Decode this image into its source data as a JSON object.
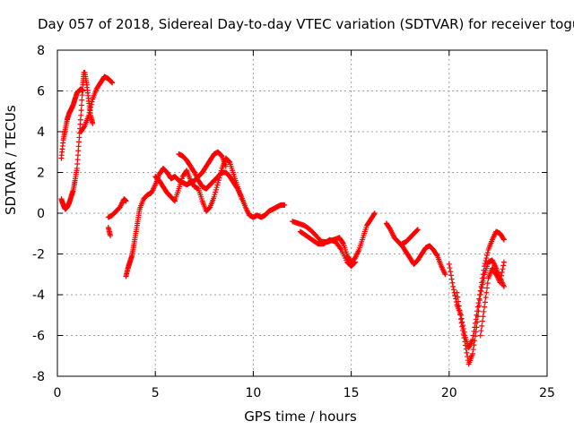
{
  "chart_data": {
    "type": "scatter",
    "title": "Day 057 of 2018, Sidereal Day-to-day VTEC variation (SDTVAR) for receiver togu",
    "xlabel": "GPS time / hours",
    "ylabel": "SDTVAR / TECUs",
    "xlim": [
      0,
      25
    ],
    "ylim": [
      -8,
      8
    ],
    "xticks": [
      "0",
      "5",
      "10",
      "15",
      "20",
      "25"
    ],
    "yticks": [
      "-8",
      "-6",
      "-4",
      "-2",
      "0",
      "2",
      "4",
      "6",
      "8"
    ],
    "grid": true,
    "marker": "+",
    "color": "#ff0000",
    "series": [
      {
        "name": "seg1",
        "x": [
          0.2,
          0.3,
          0.4,
          0.5,
          0.6,
          0.7,
          0.8,
          0.9,
          1.0,
          1.1,
          1.2,
          1.3
        ],
        "y": [
          2.7,
          3.6,
          4.1,
          4.6,
          4.9,
          5.1,
          5.3,
          5.6,
          5.9,
          6.0,
          6.1,
          6.0
        ]
      },
      {
        "name": "seg2",
        "x": [
          0.2,
          0.3,
          0.4,
          0.5,
          0.6,
          0.7,
          0.8,
          0.9,
          1.0,
          1.1,
          1.2,
          1.3,
          1.35
        ],
        "y": [
          0.7,
          0.4,
          0.2,
          0.3,
          0.5,
          0.8,
          1.1,
          1.6,
          2.2,
          3.5,
          4.8,
          6.3,
          6.9
        ]
      },
      {
        "name": "seg3",
        "x": [
          1.4,
          1.5,
          1.6,
          1.7,
          1.8
        ],
        "y": [
          6.9,
          6.3,
          5.5,
          4.8,
          4.4
        ]
      },
      {
        "name": "seg4",
        "x": [
          1.2,
          1.4,
          1.6,
          1.8,
          2.0,
          2.2,
          2.4,
          2.6,
          2.8
        ],
        "y": [
          4.0,
          4.3,
          4.8,
          5.6,
          6.1,
          6.4,
          6.7,
          6.6,
          6.4
        ]
      },
      {
        "name": "seg5",
        "x": [
          2.6,
          2.8,
          3.0,
          3.2,
          3.4,
          3.5
        ],
        "y": [
          -0.2,
          -0.1,
          0.1,
          0.3,
          0.7,
          0.6
        ]
      },
      {
        "name": "seg6",
        "x": [
          2.6,
          2.7
        ],
        "y": [
          -0.7,
          -1.1
        ]
      },
      {
        "name": "seg7",
        "x": [
          3.5,
          3.6,
          3.7,
          3.8,
          3.9,
          4.0,
          4.1,
          4.2,
          4.4,
          4.6,
          4.8,
          5.0,
          5.2,
          5.4,
          5.6,
          5.8,
          6.0,
          6.2,
          6.4,
          6.6,
          6.8,
          7.0,
          7.2,
          7.4,
          7.6,
          7.8,
          8.0,
          8.2,
          8.4,
          8.6
        ],
        "y": [
          -3.1,
          -2.7,
          -2.4,
          -2.1,
          -1.6,
          -1.0,
          -0.4,
          0.2,
          0.7,
          0.9,
          1.0,
          1.4,
          1.9,
          2.2,
          2.0,
          1.7,
          1.8,
          1.6,
          1.5,
          1.4,
          1.5,
          1.6,
          1.8,
          2.0,
          2.3,
          2.6,
          2.9,
          3.0,
          2.8,
          2.3
        ]
      },
      {
        "name": "seg8",
        "x": [
          5.0,
          5.2,
          5.4,
          5.6,
          5.8,
          6.0,
          6.2,
          6.4,
          6.6,
          6.8,
          7.0,
          7.2,
          7.4,
          7.6,
          7.8,
          8.0,
          8.2,
          8.4,
          8.6,
          8.8,
          9.0,
          9.2,
          9.4
        ],
        "y": [
          1.8,
          1.6,
          1.3,
          1.0,
          0.8,
          0.6,
          1.2,
          1.8,
          2.1,
          1.6,
          1.3,
          1.2,
          0.6,
          0.1,
          0.3,
          0.8,
          1.5,
          2.2,
          2.7,
          2.5,
          1.9,
          1.3,
          0.7
        ]
      },
      {
        "name": "seg9",
        "x": [
          6.2,
          6.4,
          6.6,
          6.8,
          7.0,
          7.2,
          7.4,
          7.6,
          7.8,
          8.0,
          8.2,
          8.4,
          8.6,
          8.8,
          9.0,
          9.2,
          9.4,
          9.6,
          9.8,
          10.0,
          10.2,
          10.4,
          10.6,
          10.8,
          11.0,
          11.2,
          11.4,
          11.6
        ],
        "y": [
          2.9,
          2.8,
          2.6,
          2.3,
          2.0,
          1.6,
          1.3,
          1.2,
          1.4,
          1.6,
          1.8,
          2.0,
          2.0,
          1.8,
          1.5,
          1.2,
          0.8,
          0.3,
          -0.1,
          -0.2,
          -0.1,
          -0.2,
          -0.1,
          0.1,
          0.2,
          0.3,
          0.4,
          0.4
        ]
      },
      {
        "name": "seg10",
        "x": [
          12.0,
          12.3,
          12.6,
          12.9,
          13.2,
          13.5,
          13.8,
          14.1,
          14.4,
          14.6,
          14.8,
          15.0,
          15.2,
          15.4,
          15.6,
          15.8,
          16.0,
          16.2
        ],
        "y": [
          -0.4,
          -0.5,
          -0.6,
          -0.8,
          -1.1,
          -1.4,
          -1.4,
          -1.3,
          -1.2,
          -1.5,
          -2.1,
          -2.4,
          -2.2,
          -1.8,
          -1.2,
          -0.6,
          -0.3,
          0.0
        ]
      },
      {
        "name": "seg11",
        "x": [
          12.4,
          12.7,
          13.0,
          13.3,
          13.6,
          13.9,
          14.2,
          14.5,
          14.8,
          15.0,
          15.2
        ],
        "y": [
          -0.9,
          -1.1,
          -1.3,
          -1.5,
          -1.5,
          -1.3,
          -1.4,
          -1.8,
          -2.4,
          -2.6,
          -2.4
        ]
      },
      {
        "name": "seg12",
        "x": [
          16.8,
          17.0,
          17.2,
          17.4,
          17.6,
          17.8,
          18.0,
          18.2,
          18.4,
          18.6,
          18.8,
          19.0,
          19.2,
          19.4,
          19.6,
          19.8
        ],
        "y": [
          -0.5,
          -0.8,
          -1.2,
          -1.4,
          -1.6,
          -1.9,
          -2.2,
          -2.5,
          -2.3,
          -2.0,
          -1.7,
          -1.6,
          -1.8,
          -2.1,
          -2.6,
          -3.0
        ]
      },
      {
        "name": "seg13",
        "x": [
          17.6,
          17.8,
          18.0,
          18.2,
          18.4
        ],
        "y": [
          -1.5,
          -1.4,
          -1.2,
          -1.0,
          -0.8
        ]
      },
      {
        "name": "seg14",
        "x": [
          20.0,
          20.2,
          20.4,
          20.6,
          20.8,
          21.0,
          21.2,
          21.4,
          21.6,
          21.8,
          22.0,
          22.2,
          22.4,
          22.6,
          22.8
        ],
        "y": [
          -2.5,
          -3.6,
          -4.5,
          -5.0,
          -6.0,
          -6.6,
          -6.2,
          -5.0,
          -3.8,
          -2.6,
          -1.8,
          -1.3,
          -0.9,
          -1.0,
          -1.3
        ]
      },
      {
        "name": "seg15",
        "x": [
          20.4,
          20.6,
          20.8,
          21.0,
          21.2,
          21.4,
          21.6,
          21.8,
          22.0,
          22.2,
          22.4,
          22.6,
          22.8
        ],
        "y": [
          -3.9,
          -5.2,
          -6.3,
          -7.4,
          -6.9,
          -5.6,
          -4.0,
          -3.0,
          -2.4,
          -2.3,
          -2.7,
          -3.2,
          -3.6
        ]
      },
      {
        "name": "seg16",
        "x": [
          21.6,
          21.8,
          22.0,
          22.2,
          22.4,
          22.6,
          22.8
        ],
        "y": [
          -6.0,
          -4.6,
          -3.2,
          -2.7,
          -3.0,
          -3.4,
          -2.4
        ]
      }
    ]
  }
}
